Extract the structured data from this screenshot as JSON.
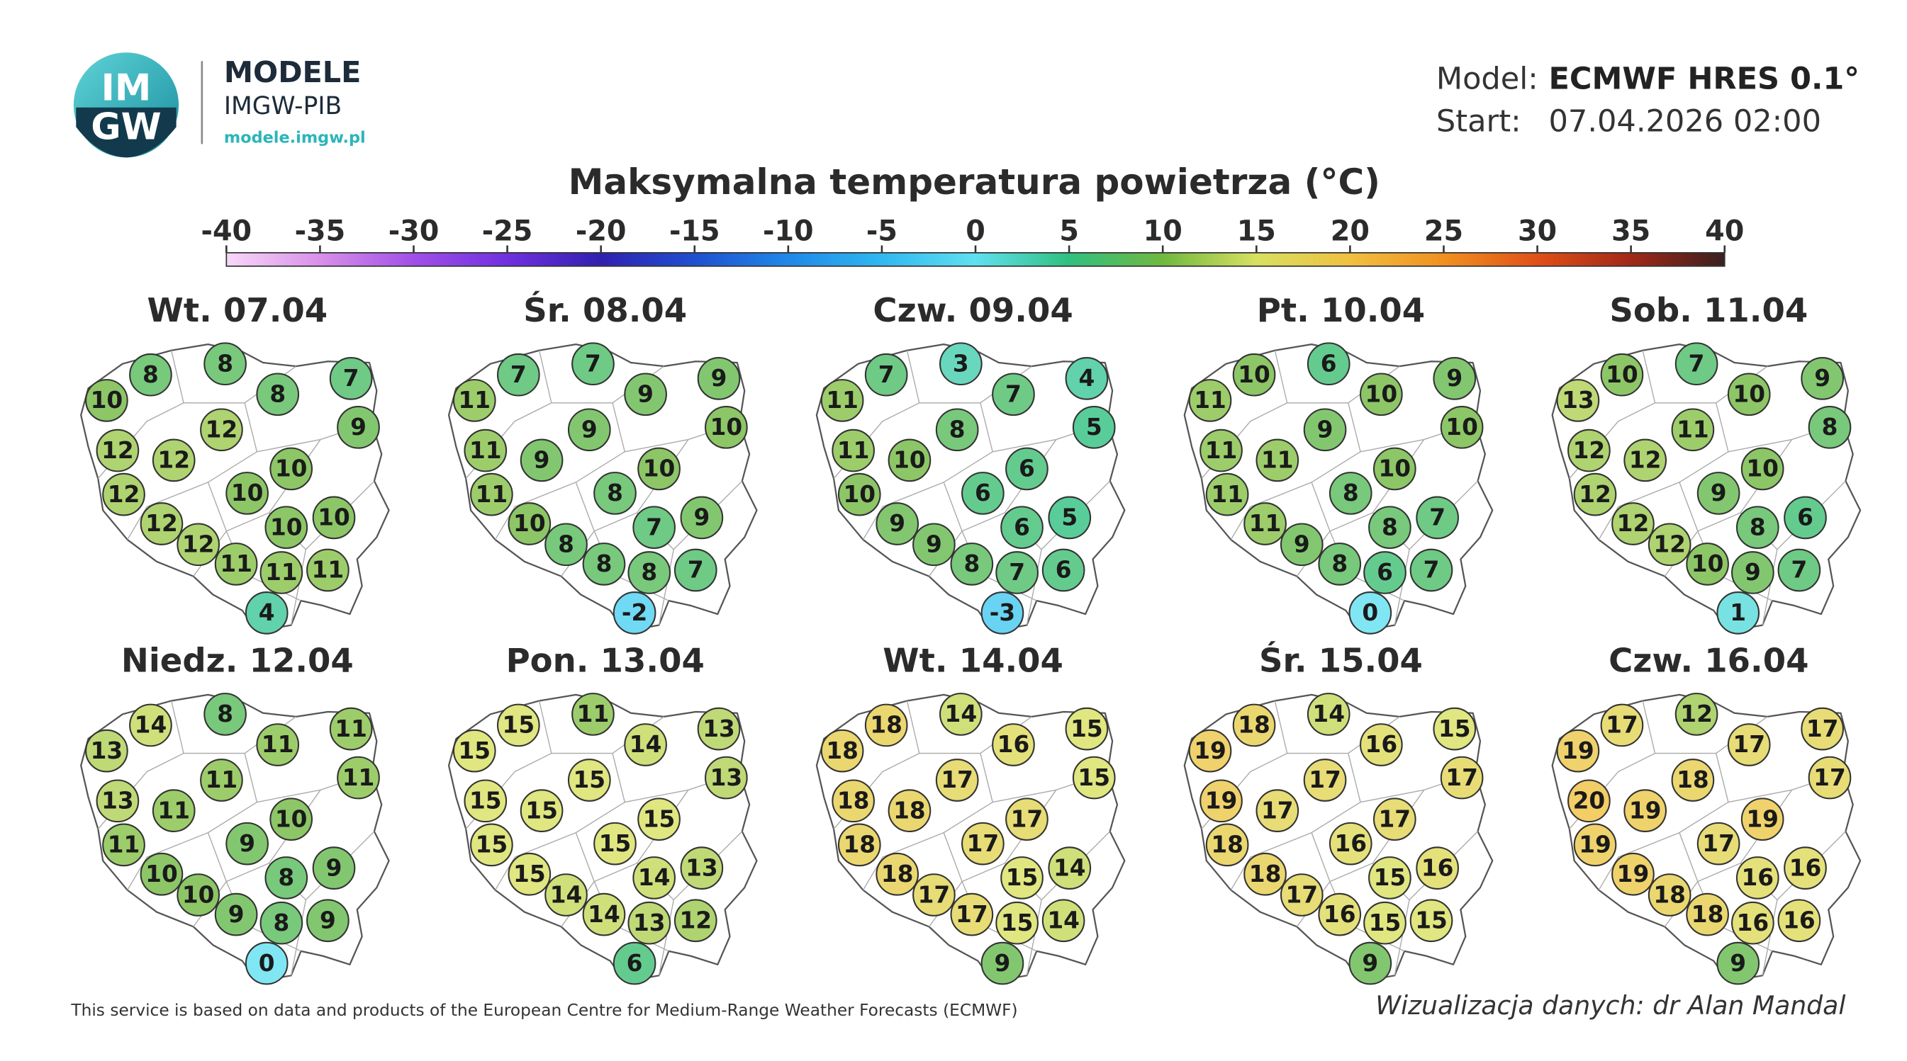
{
  "header": {
    "logo_top": "IM",
    "logo_bottom": "GW",
    "brand": "MODELE",
    "org": "IMGW-PIB",
    "url": "modele.imgw.pl",
    "model_label": "Model:",
    "model": "ECMWF HRES 0.1°",
    "start_label": "Start:",
    "start": "07.04.2026 02:00"
  },
  "title": "Maksymalna temperatura powietrza (°C)",
  "colorbar": {
    "ticks": [
      -40,
      -35,
      -30,
      -25,
      -20,
      -15,
      -10,
      -5,
      0,
      5,
      10,
      15,
      20,
      25,
      30,
      35,
      40
    ],
    "colors": [
      "#f8d8f8",
      "#d890e8",
      "#a050e8",
      "#7030e0",
      "#3020b0",
      "#2050d0",
      "#2088e8",
      "#30b8f0",
      "#60e0f0",
      "#30c080",
      "#70b840",
      "#d8e060",
      "#f0c040",
      "#f09020",
      "#e05018",
      "#a02818",
      "#3a2020"
    ]
  },
  "maps": [
    {
      "day": "Wt. 07.04",
      "values": [
        10,
        8,
        8,
        7,
        8,
        9,
        12,
        12,
        12,
        10,
        12,
        10,
        10,
        12,
        10,
        12,
        11,
        11,
        11,
        4
      ]
    },
    {
      "day": "Śr. 08.04",
      "values": [
        11,
        7,
        7,
        9,
        9,
        10,
        11,
        9,
        9,
        10,
        11,
        8,
        9,
        10,
        7,
        8,
        8,
        8,
        7,
        -2
      ]
    },
    {
      "day": "Czw. 09.04",
      "values": [
        11,
        7,
        3,
        4,
        7,
        5,
        11,
        10,
        8,
        6,
        10,
        6,
        5,
        9,
        6,
        9,
        8,
        7,
        6,
        -3
      ]
    },
    {
      "day": "Pt. 10.04",
      "values": [
        11,
        10,
        6,
        9,
        10,
        10,
        11,
        11,
        9,
        10,
        11,
        8,
        7,
        11,
        8,
        9,
        8,
        6,
        7,
        0
      ]
    },
    {
      "day": "Sob. 11.04",
      "values": [
        13,
        10,
        7,
        9,
        10,
        8,
        12,
        12,
        11,
        10,
        12,
        9,
        6,
        12,
        8,
        12,
        10,
        9,
        7,
        1
      ]
    },
    {
      "day": "Niedz. 12.04",
      "values": [
        13,
        14,
        8,
        11,
        11,
        11,
        13,
        11,
        11,
        10,
        11,
        9,
        9,
        10,
        8,
        10,
        9,
        8,
        9,
        0
      ]
    },
    {
      "day": "Pon. 13.04",
      "values": [
        15,
        15,
        11,
        13,
        14,
        13,
        15,
        15,
        15,
        15,
        15,
        15,
        13,
        15,
        14,
        14,
        14,
        13,
        12,
        6
      ]
    },
    {
      "day": "Wt. 14.04",
      "values": [
        18,
        18,
        14,
        15,
        16,
        15,
        18,
        18,
        17,
        17,
        18,
        17,
        14,
        18,
        15,
        17,
        17,
        15,
        14,
        9
      ]
    },
    {
      "day": "Śr. 15.04",
      "values": [
        19,
        18,
        14,
        15,
        16,
        17,
        19,
        17,
        17,
        17,
        18,
        16,
        16,
        18,
        15,
        17,
        16,
        15,
        15,
        9
      ]
    },
    {
      "day": "Czw. 16.04",
      "values": [
        19,
        17,
        12,
        17,
        17,
        17,
        20,
        19,
        18,
        19,
        19,
        17,
        16,
        19,
        16,
        18,
        18,
        16,
        16,
        9
      ]
    }
  ],
  "footer": {
    "source": "This service is based on data and products of the European Centre for Medium-Range Weather Forecasts (ECMWF)",
    "credit": "Wizualizacja danych: dr Alan Mandal"
  }
}
